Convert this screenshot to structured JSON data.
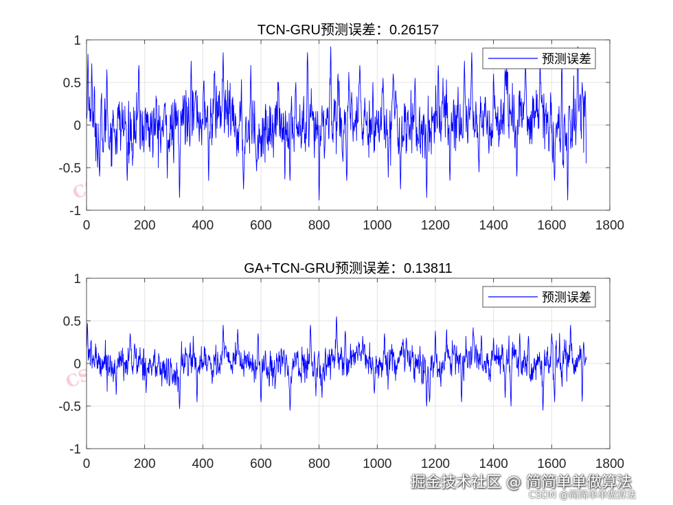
{
  "chart_data": [
    {
      "type": "line",
      "title": "TCN-GRU预测误差：0.26157",
      "xlabel": "",
      "ylabel": "",
      "xlim": [
        0,
        1800
      ],
      "ylim": [
        -1,
        1
      ],
      "xticks": [
        0,
        200,
        400,
        600,
        800,
        1000,
        1200,
        1400,
        1600,
        1800
      ],
      "yticks": [
        -1,
        -0.5,
        0,
        0.5,
        1
      ],
      "xtick_labels": [
        "0",
        "200",
        "400",
        "600",
        "800",
        "1000",
        "1200",
        "1400",
        "1600",
        "1800"
      ],
      "ytick_labels": [
        "-1",
        "-0.5",
        "0",
        "0.5",
        "1"
      ],
      "grid": true,
      "legend": {
        "entries": [
          "预测误差"
        ],
        "placement": "top-right"
      },
      "series": [
        {
          "name": "预测误差",
          "color": "#0000ff",
          "n": 1720,
          "amplitude": 0.26157,
          "profile": {
            "x": [
              0,
              50,
              100,
              150,
              200,
              250,
              300,
              350,
              400,
              450,
              500,
              550,
              600,
              650,
              700,
              750,
              800,
              850,
              900,
              950,
              1000,
              1050,
              1100,
              1150,
              1200,
              1250,
              1300,
              1350,
              1400,
              1450,
              1500,
              1550,
              1600,
              1650,
              1700,
              1720
            ],
            "y": [
              0.1,
              -0.1,
              0,
              -0.05,
              0,
              -0.05,
              -0.1,
              0.2,
              0.1,
              0.2,
              0,
              -0.05,
              -0.1,
              0.05,
              0,
              -0.1,
              -0.1,
              0.1,
              0,
              0.05,
              -0.05,
              0.1,
              0,
              -0.05,
              0.1,
              0.05,
              0.1,
              0.05,
              0,
              0.15,
              0.1,
              0.05,
              0,
              -0.1,
              0.1,
              0.2
            ]
          },
          "events": [
            [
              5,
              0.83
            ],
            [
              18,
              0.72
            ],
            [
              45,
              -0.6
            ],
            [
              70,
              0.65
            ],
            [
              140,
              -0.65
            ],
            [
              180,
              0.7
            ],
            [
              320,
              -0.85
            ],
            [
              360,
              0.75
            ],
            [
              470,
              0.85
            ],
            [
              420,
              -0.65
            ],
            [
              540,
              -0.75
            ],
            [
              565,
              0.7
            ],
            [
              660,
              0.5
            ],
            [
              700,
              -0.65
            ],
            [
              720,
              0.5
            ],
            [
              760,
              0.85
            ],
            [
              800,
              -0.88
            ],
            [
              840,
              0.92
            ],
            [
              865,
              0.6
            ],
            [
              895,
              -0.65
            ],
            [
              940,
              0.7
            ],
            [
              985,
              0.5
            ],
            [
              1020,
              0.55
            ],
            [
              1055,
              0.6
            ],
            [
              1080,
              -0.75
            ],
            [
              1130,
              0.55
            ],
            [
              1170,
              -0.85
            ],
            [
              1210,
              0.7
            ],
            [
              1250,
              -0.65
            ],
            [
              1300,
              0.75
            ],
            [
              1325,
              0.85
            ],
            [
              1350,
              -0.55
            ],
            [
              1400,
              0.6
            ],
            [
              1440,
              0.65
            ],
            [
              1480,
              -0.6
            ],
            [
              1510,
              0.75
            ],
            [
              1560,
              0.75
            ],
            [
              1610,
              -0.65
            ],
            [
              1635,
              0.7
            ],
            [
              1655,
              -0.88
            ],
            [
              1690,
              0.92
            ],
            [
              1705,
              0.5
            ],
            [
              1715,
              0.4
            ]
          ]
        }
      ]
    },
    {
      "type": "line",
      "title": "GA+TCN-GRU预测误差：0.13811",
      "xlabel": "",
      "ylabel": "",
      "xlim": [
        0,
        1800
      ],
      "ylim": [
        -1,
        1
      ],
      "xticks": [
        0,
        200,
        400,
        600,
        800,
        1000,
        1200,
        1400,
        1600,
        1800
      ],
      "yticks": [
        -1,
        -0.5,
        0,
        0.5,
        1
      ],
      "xtick_labels": [
        "0",
        "200",
        "400",
        "600",
        "800",
        "1000",
        "1200",
        "1400",
        "1600",
        "1800"
      ],
      "ytick_labels": [
        "-1",
        "-0.5",
        "0",
        "0.5",
        "1"
      ],
      "grid": true,
      "legend": {
        "entries": [
          "预测误差"
        ],
        "placement": "top-right"
      },
      "series": [
        {
          "name": "预测误差",
          "color": "#0000ff",
          "n": 1720,
          "amplitude": 0.13811,
          "profile": {
            "x": [
              0,
              50,
              100,
              150,
              200,
              250,
              300,
              350,
              400,
              450,
              500,
              550,
              600,
              650,
              700,
              750,
              800,
              850,
              900,
              950,
              1000,
              1050,
              1100,
              1150,
              1200,
              1250,
              1300,
              1350,
              1400,
              1450,
              1500,
              1550,
              1600,
              1650,
              1700,
              1720
            ],
            "y": [
              0.05,
              0.05,
              -0.05,
              0.05,
              0,
              -0.05,
              -0.15,
              0.05,
              0.05,
              0,
              0.05,
              0,
              -0.05,
              0,
              -0.05,
              0,
              -0.05,
              0.1,
              0.05,
              0,
              -0.05,
              0,
              0.05,
              -0.05,
              -0.1,
              0.05,
              0.1,
              0.05,
              0,
              0.05,
              0,
              -0.05,
              0.05,
              0,
              0.1,
              0.05
            ]
          },
          "events": [
            [
              3,
              0.47
            ],
            [
              150,
              0.35
            ],
            [
              320,
              -0.53
            ],
            [
              470,
              0.45
            ],
            [
              380,
              -0.45
            ],
            [
              520,
              0.4
            ],
            [
              590,
              0.35
            ],
            [
              600,
              -0.45
            ],
            [
              700,
              -0.55
            ],
            [
              770,
              0.45
            ],
            [
              860,
              0.55
            ],
            [
              890,
              0.38
            ],
            [
              810,
              -0.4
            ],
            [
              950,
              0.32
            ],
            [
              990,
              -0.35
            ],
            [
              1025,
              0.35
            ],
            [
              1100,
              0.3
            ],
            [
              1170,
              -0.5
            ],
            [
              1180,
              -0.45
            ],
            [
              1200,
              0.38
            ],
            [
              1290,
              -0.45
            ],
            [
              1330,
              0.42
            ],
            [
              1400,
              0.3
            ],
            [
              1440,
              -0.4
            ],
            [
              1460,
              -0.5
            ],
            [
              1490,
              0.35
            ],
            [
              1520,
              0.32
            ],
            [
              1570,
              -0.55
            ],
            [
              1600,
              0.35
            ],
            [
              1610,
              -0.45
            ],
            [
              1665,
              0.45
            ],
            [
              1705,
              -0.45
            ],
            [
              1710,
              0.25
            ]
          ]
        }
      ]
    }
  ],
  "watermark": {
    "text": "CSDN博客：简简单单做算法"
  },
  "footer": {
    "brand": "掘金技术社区 @ 简简单单做算法",
    "credit": "CSDN @简简单单做算法"
  }
}
